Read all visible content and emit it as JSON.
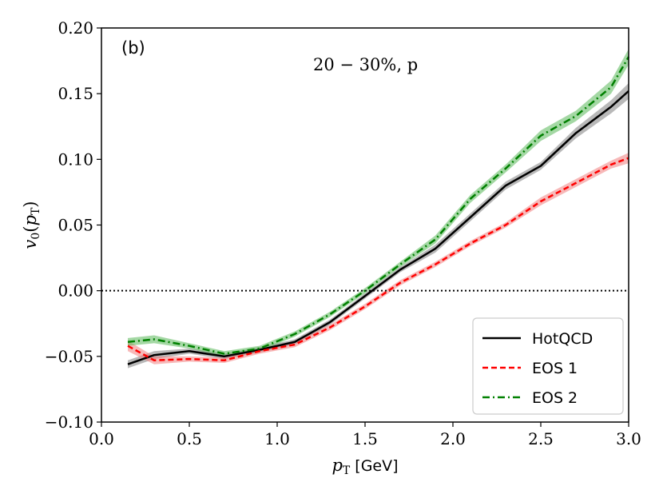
{
  "chart_data": {
    "type": "line",
    "panel_label": "(b)",
    "annotation": {
      "text": "20 − 30%, p"
    },
    "xlabel": {
      "sym": "p",
      "sub": "T",
      "unit": " [GeV]"
    },
    "ylabel": {
      "pre": "v",
      "pre_sub": "0",
      "open": "(",
      "sym": "p",
      "sub": "T",
      "close": ")"
    },
    "xlim": [
      0.0,
      3.0
    ],
    "ylim": [
      -0.1,
      0.2
    ],
    "xticks": [
      "0.0",
      "0.5",
      "1.0",
      "1.5",
      "2.0",
      "2.5",
      "3.0"
    ],
    "yticks": [
      "0.20",
      "0.15",
      "0.10",
      "0.05",
      "0.00",
      "−0.05",
      "−0.10"
    ],
    "reference_line": {
      "y": 0.0,
      "style": "dotted",
      "color": "#000000"
    },
    "legend": {
      "placement": "bottom-right"
    },
    "series": [
      {
        "name": "HotQCD",
        "color": "#000000",
        "band_color": "#808080",
        "dash": "solid",
        "x": [
          0.15,
          0.3,
          0.5,
          0.7,
          0.9,
          1.1,
          1.3,
          1.5,
          1.7,
          1.9,
          2.1,
          2.3,
          2.5,
          2.7,
          2.9,
          3.0
        ],
        "y": [
          -0.056,
          -0.049,
          -0.046,
          -0.05,
          -0.045,
          -0.039,
          -0.024,
          -0.004,
          0.016,
          0.032,
          0.056,
          0.08,
          0.095,
          0.12,
          0.14,
          0.152
        ],
        "err": [
          0.003,
          0.003,
          0.002,
          0.002,
          0.002,
          0.002,
          0.002,
          0.002,
          0.002,
          0.003,
          0.003,
          0.003,
          0.003,
          0.004,
          0.005,
          0.006
        ]
      },
      {
        "name": "EOS 1",
        "color": "#ff0000",
        "band_color": "#f08080",
        "dash": "dashed",
        "x": [
          0.15,
          0.3,
          0.5,
          0.7,
          0.9,
          1.1,
          1.3,
          1.5,
          1.7,
          1.9,
          2.1,
          2.3,
          2.5,
          2.7,
          2.9,
          3.0
        ],
        "y": [
          -0.042,
          -0.053,
          -0.052,
          -0.053,
          -0.046,
          -0.041,
          -0.028,
          -0.012,
          0.006,
          0.02,
          0.036,
          0.05,
          0.068,
          0.082,
          0.096,
          0.101
        ],
        "err": [
          0.004,
          0.003,
          0.002,
          0.002,
          0.002,
          0.002,
          0.002,
          0.002,
          0.002,
          0.002,
          0.002,
          0.002,
          0.003,
          0.003,
          0.003,
          0.004
        ]
      },
      {
        "name": "EOS 2",
        "color": "#008000",
        "band_color": "#5ab85a",
        "dash": "dashdot",
        "x": [
          0.15,
          0.3,
          0.5,
          0.7,
          0.9,
          1.1,
          1.3,
          1.5,
          1.7,
          1.9,
          2.1,
          2.3,
          2.5,
          2.7,
          2.9,
          3.0
        ],
        "y": [
          -0.039,
          -0.037,
          -0.042,
          -0.048,
          -0.044,
          -0.033,
          -0.018,
          0.0,
          0.02,
          0.039,
          0.07,
          0.093,
          0.118,
          0.133,
          0.155,
          0.178
        ],
        "err": [
          0.003,
          0.003,
          0.002,
          0.002,
          0.002,
          0.002,
          0.002,
          0.002,
          0.002,
          0.003,
          0.003,
          0.003,
          0.004,
          0.004,
          0.005,
          0.006
        ]
      }
    ]
  }
}
